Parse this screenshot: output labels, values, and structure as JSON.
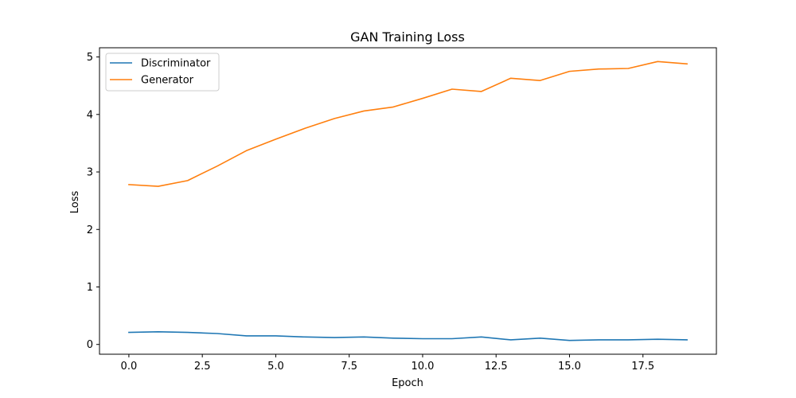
{
  "chart_data": {
    "type": "line",
    "title": "GAN Training Loss",
    "xlabel": "Epoch",
    "ylabel": "Loss",
    "xlim": [
      -1,
      20
    ],
    "ylim": [
      -0.17,
      5.16
    ],
    "xticks": [
      0.0,
      2.5,
      5.0,
      7.5,
      10.0,
      12.5,
      15.0,
      17.5
    ],
    "xtick_labels": [
      "0.0",
      "2.5",
      "5.0",
      "7.5",
      "10.0",
      "12.5",
      "15.0",
      "17.5"
    ],
    "yticks": [
      0,
      1,
      2,
      3,
      4,
      5
    ],
    "ytick_labels": [
      "0",
      "1",
      "2",
      "3",
      "4",
      "5"
    ],
    "grid": false,
    "legend_position": "top-left",
    "x": [
      0,
      1,
      2,
      3,
      4,
      5,
      6,
      7,
      8,
      9,
      10,
      11,
      12,
      13,
      14,
      15,
      16,
      17,
      18,
      19
    ],
    "series": [
      {
        "name": "Discriminator",
        "color": "#1f77b4",
        "values": [
          0.21,
          0.22,
          0.21,
          0.19,
          0.15,
          0.15,
          0.13,
          0.12,
          0.13,
          0.11,
          0.1,
          0.1,
          0.13,
          0.08,
          0.11,
          0.07,
          0.08,
          0.08,
          0.09,
          0.08
        ]
      },
      {
        "name": "Generator",
        "color": "#ff7f0e",
        "values": [
          2.78,
          2.75,
          2.85,
          3.1,
          3.37,
          3.57,
          3.76,
          3.93,
          4.06,
          4.13,
          4.28,
          4.44,
          4.4,
          4.63,
          4.59,
          4.75,
          4.79,
          4.8,
          4.92,
          4.88
        ]
      }
    ]
  }
}
